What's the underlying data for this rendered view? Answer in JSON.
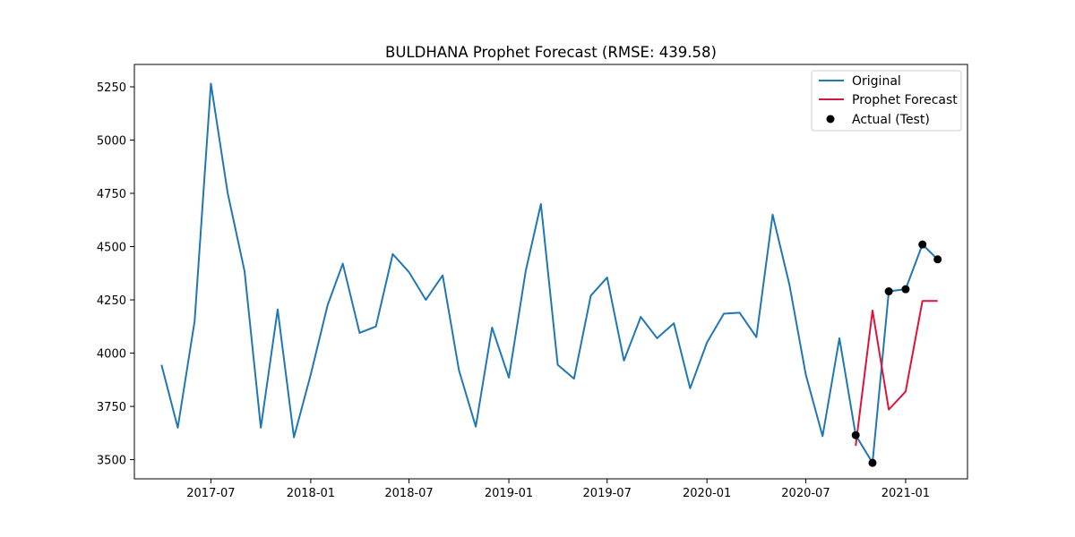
{
  "chart_data": {
    "type": "line",
    "title": "BULDHANA Prophet Forecast (RMSE: 439.58)",
    "xlabel": "",
    "ylabel": "",
    "grid": false,
    "legend_position": "top-right",
    "xlim": [
      "2017-02-10",
      "2021-04-25"
    ],
    "ylim": [
      3410,
      5355
    ],
    "x_ticks": [
      "2017-07",
      "2018-01",
      "2018-07",
      "2019-01",
      "2019-07",
      "2020-01",
      "2020-07",
      "2021-01"
    ],
    "y_ticks": [
      3500,
      3750,
      4000,
      4250,
      4500,
      4750,
      5000,
      5250
    ],
    "colors": {
      "Original": "#1f77b4",
      "Prophet Forecast": "#dc143c",
      "Actual (Test)": "#000000"
    },
    "series": [
      {
        "name": "Original",
        "style": "line",
        "x": [
          "2017-04-01",
          "2017-05-01",
          "2017-06-01",
          "2017-07-01",
          "2017-08-01",
          "2017-09-01",
          "2017-10-01",
          "2017-11-01",
          "2017-12-01",
          "2018-01-01",
          "2018-02-01",
          "2018-03-01",
          "2018-04-01",
          "2018-05-01",
          "2018-06-01",
          "2018-07-01",
          "2018-08-01",
          "2018-09-01",
          "2018-10-01",
          "2018-11-01",
          "2018-12-01",
          "2019-01-01",
          "2019-02-01",
          "2019-03-01",
          "2019-04-01",
          "2019-05-01",
          "2019-06-01",
          "2019-07-01",
          "2019-08-01",
          "2019-09-01",
          "2019-10-01",
          "2019-11-01",
          "2019-12-01",
          "2020-01-01",
          "2020-02-01",
          "2020-03-01",
          "2020-04-01",
          "2020-05-01",
          "2020-06-01",
          "2020-07-01",
          "2020-08-01",
          "2020-09-01",
          "2020-10-01",
          "2020-11-01",
          "2020-12-01",
          "2021-01-01",
          "2021-02-01",
          "2021-03-01"
        ],
        "y": [
          3945,
          3650,
          4150,
          5265,
          4750,
          4385,
          3650,
          4205,
          3605,
          3900,
          4225,
          4420,
          4095,
          4125,
          4465,
          4380,
          4250,
          4365,
          3920,
          3655,
          4120,
          3885,
          4385,
          4700,
          3945,
          3880,
          4270,
          4355,
          3965,
          4170,
          4070,
          4140,
          3835,
          4050,
          4185,
          4190,
          4075,
          4650,
          4320,
          3900,
          3610,
          4070,
          3615,
          3485,
          4290,
          4300,
          4510,
          4440
        ]
      },
      {
        "name": "Prophet Forecast",
        "style": "line",
        "x": [
          "2020-10-01",
          "2020-11-01",
          "2020-12-01",
          "2021-01-01",
          "2021-02-01",
          "2021-03-01"
        ],
        "y": [
          3565,
          4200,
          3735,
          3820,
          4245,
          4245
        ]
      },
      {
        "name": "Actual (Test)",
        "style": "scatter",
        "x": [
          "2020-10-01",
          "2020-11-01",
          "2020-12-01",
          "2021-01-01",
          "2021-02-01",
          "2021-03-01"
        ],
        "y": [
          3615,
          3485,
          4290,
          4300,
          4510,
          4440
        ]
      }
    ]
  }
}
